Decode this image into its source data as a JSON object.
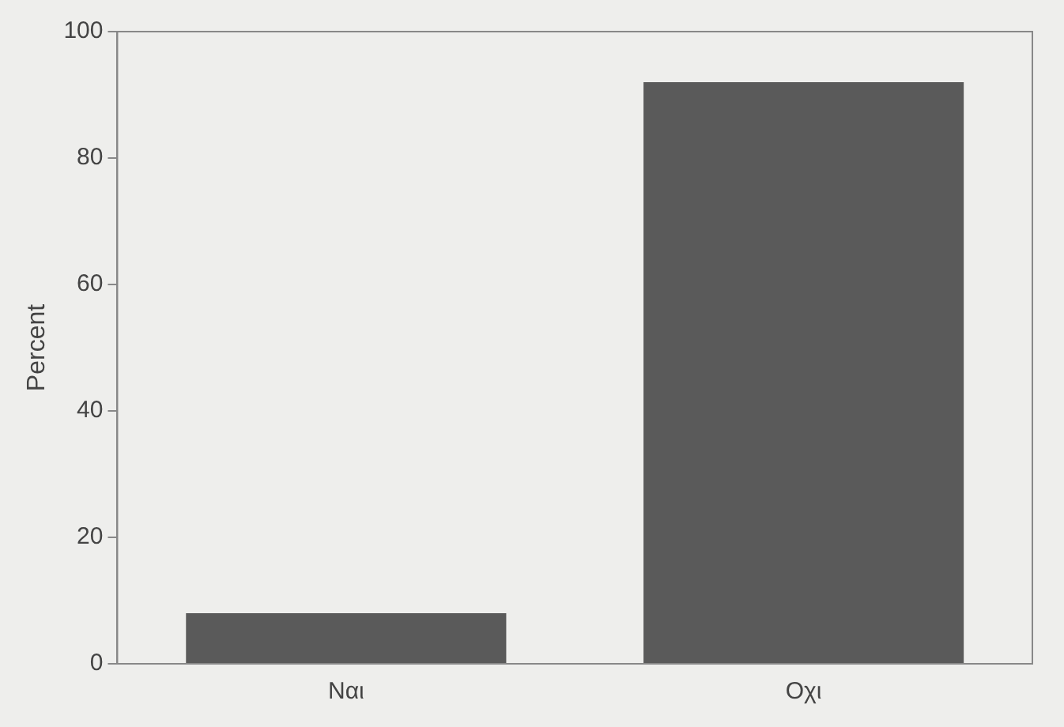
{
  "chart_data": {
    "type": "bar",
    "ylabel": "Percent",
    "categories": [
      "Ναι",
      "Οχι"
    ],
    "values": [
      8,
      92
    ],
    "color": "#5a5a5a",
    "ylim": [
      0,
      100
    ],
    "yticks": [
      0,
      20,
      40,
      60,
      80,
      100
    ],
    "grid": false,
    "legend": false
  }
}
